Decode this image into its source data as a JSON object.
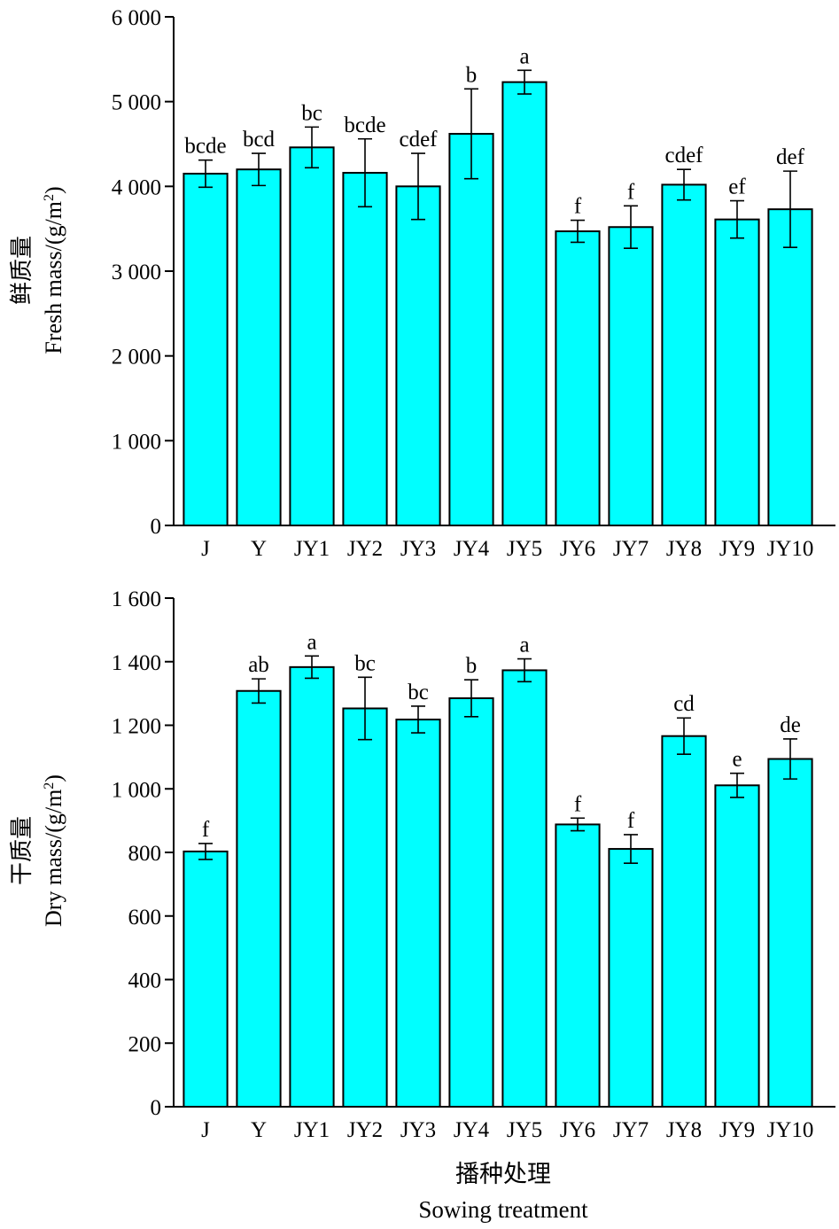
{
  "colors": {
    "bar_fill": "#00FFFF",
    "stroke": "#000000"
  },
  "x_title_cn": "播种处理",
  "x_title_en": "Sowing treatment",
  "chart_data": [
    {
      "type": "bar",
      "ylabel_cn": "鲜质量",
      "ylabel_en_prefix": "Fresh mass/(g/m",
      "ylabel_en_sup": "2",
      "ylabel_en_suffix": ")",
      "ylim": [
        0,
        6000
      ],
      "yticks": [
        0,
        1000,
        2000,
        3000,
        4000,
        5000,
        6000
      ],
      "ytick_labels": [
        "0",
        "1 000",
        "2 000",
        "3 000",
        "4 000",
        "5 000",
        "6 000"
      ],
      "categories": [
        "J",
        "Y",
        "JY1",
        "JY2",
        "JY3",
        "JY4",
        "JY5",
        "JY6",
        "JY7",
        "JY8",
        "JY9",
        "JY10"
      ],
      "values": [
        4150,
        4200,
        4460,
        4160,
        4000,
        4620,
        5230,
        3470,
        3520,
        4020,
        3610,
        3730
      ],
      "errors": [
        160,
        190,
        240,
        400,
        390,
        530,
        140,
        130,
        250,
        180,
        220,
        450
      ],
      "significance": [
        "bcde",
        "bcd",
        "bc",
        "bcde",
        "cdef",
        "b",
        "a",
        "f",
        "f",
        "cdef",
        "ef",
        "def"
      ]
    },
    {
      "type": "bar",
      "ylabel_cn": "干质量",
      "ylabel_en_prefix": "Dry mass/(g/m",
      "ylabel_en_sup": "2",
      "ylabel_en_suffix": ")",
      "ylim": [
        0,
        1600
      ],
      "yticks": [
        0,
        200,
        400,
        600,
        800,
        1000,
        1200,
        1400,
        1600
      ],
      "ytick_labels": [
        "0",
        "200",
        "400",
        "600",
        "800",
        "1 000",
        "1 200",
        "1 400",
        "1 600"
      ],
      "categories": [
        "J",
        "Y",
        "JY1",
        "JY2",
        "JY3",
        "JY4",
        "JY5",
        "JY6",
        "JY7",
        "JY8",
        "JY9",
        "JY10"
      ],
      "values": [
        803,
        1308,
        1383,
        1253,
        1218,
        1285,
        1373,
        888,
        811,
        1166,
        1011,
        1094
      ],
      "errors": [
        25,
        38,
        35,
        98,
        42,
        58,
        36,
        20,
        45,
        57,
        38,
        63
      ],
      "significance": [
        "f",
        "ab",
        "a",
        "bc",
        "bc",
        "b",
        "a",
        "f",
        "f",
        "cd",
        "e",
        "de"
      ]
    }
  ]
}
